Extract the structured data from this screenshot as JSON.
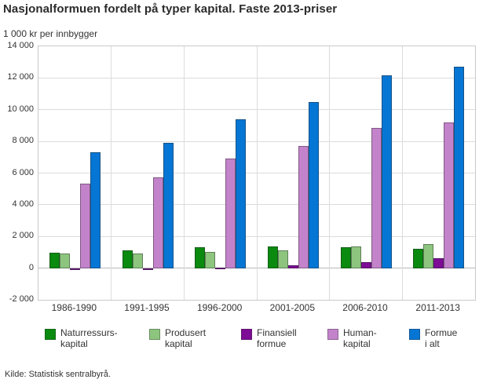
{
  "header": {
    "title": "Nasjonalformuen fordelt på typer kapital. Faste 2013-priser",
    "unit_label": "1 000 kr per innbygger"
  },
  "footer": {
    "source": "Kilde: Statistisk sentralbyrå."
  },
  "axis": {
    "y_tick_labels": [
      "14 000",
      "12 000",
      "10 000",
      "8 000",
      "6 000",
      "4 000",
      "2 000",
      "0",
      "-2 000"
    ],
    "grid_color": "#dcdcdc"
  },
  "chart_data": {
    "type": "bar",
    "title": "Nasjonalformuen fordelt på typer kapital. Faste 2013-priser",
    "ylabel": "1 000 kr per innbygger",
    "xlabel": "",
    "ylim": [
      -2000,
      14000
    ],
    "y_step": 2000,
    "grid": true,
    "legend_position": "bottom",
    "categories": [
      "1986-1990",
      "1991-1995",
      "1996-2000",
      "2001-2005",
      "2006-2010",
      "2011-2013"
    ],
    "series": [
      {
        "name": "Naturressurskapital",
        "label_lines": [
          "Naturressurs-",
          "kapital"
        ],
        "color": "#0a8a0f",
        "values": [
          950,
          1100,
          1300,
          1350,
          1300,
          1200
        ]
      },
      {
        "name": "Produsert kapital",
        "label_lines": [
          "Produsert",
          "kapital"
        ],
        "color": "#8dc57f",
        "values": [
          900,
          900,
          1000,
          1100,
          1350,
          1500
        ]
      },
      {
        "name": "Finansiell formue",
        "label_lines": [
          "Finansiell",
          "formue"
        ],
        "color": "#7d0c96",
        "values": [
          -100,
          -50,
          50,
          200,
          400,
          650
        ]
      },
      {
        "name": "Humankapital",
        "label_lines": [
          "Human-",
          "kapital"
        ],
        "color": "#c383cb",
        "values": [
          5350,
          5750,
          6900,
          7700,
          8850,
          9200
        ]
      },
      {
        "name": "Formue i alt",
        "label_lines": [
          "Formue",
          "i alt"
        ],
        "color": "#0676d5",
        "values": [
          7300,
          7900,
          9400,
          10500,
          12150,
          12700
        ]
      }
    ]
  }
}
